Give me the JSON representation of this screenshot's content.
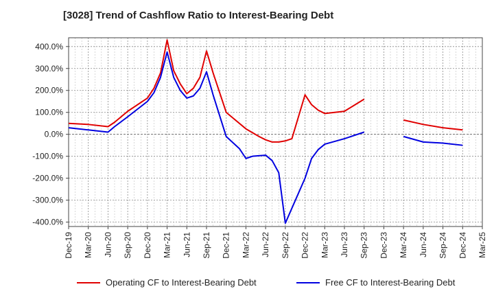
{
  "chart_data": {
    "type": "line",
    "title": "[3028]  Trend of Cashflow Ratio to Interest-Bearing Debt",
    "xlabel": "",
    "ylabel": "",
    "x_ticks": [
      "Dec-19",
      "Mar-20",
      "Jun-20",
      "Sep-20",
      "Dec-20",
      "Mar-21",
      "Jun-21",
      "Sep-21",
      "Dec-21",
      "Mar-22",
      "Jun-22",
      "Sep-22",
      "Dec-22",
      "Mar-23",
      "Jun-23",
      "Sep-23",
      "Dec-23",
      "Mar-24",
      "Jun-24",
      "Sep-24",
      "Dec-24",
      "Mar-25"
    ],
    "y_ticks": [
      {
        "value": 400,
        "label": "400.0%"
      },
      {
        "value": 300,
        "label": "300.0%"
      },
      {
        "value": 200,
        "label": "200.0%"
      },
      {
        "value": 100,
        "label": "100.0%"
      },
      {
        "value": 0,
        "label": "0.0%"
      },
      {
        "value": -100,
        "label": "-100.0%"
      },
      {
        "value": -200,
        "label": "-200.0%"
      },
      {
        "value": -300,
        "label": "-300.0%"
      },
      {
        "value": -400,
        "label": "-400.0%"
      }
    ],
    "ylim": [
      -420,
      440
    ],
    "grid": true,
    "legend_position": "bottom",
    "series": [
      {
        "name": "Operating CF to Interest-Bearing Debt",
        "color": "#e00000",
        "points": [
          [
            "2019-12",
            50
          ],
          [
            "2020-03",
            45
          ],
          [
            "2020-06",
            35
          ],
          [
            "2020-07",
            55
          ],
          [
            "2020-09",
            105
          ],
          [
            "2020-12",
            165
          ],
          [
            "2021-01",
            210
          ],
          [
            "2021-02",
            280
          ],
          [
            "2021-03",
            430
          ],
          [
            "2021-04",
            290
          ],
          [
            "2021-05",
            230
          ],
          [
            "2021-06",
            185
          ],
          [
            "2021-07",
            210
          ],
          [
            "2021-08",
            260
          ],
          [
            "2021-09",
            380
          ],
          [
            "2021-10",
            280
          ],
          [
            "2021-12",
            100
          ],
          [
            "2022-03",
            25
          ],
          [
            "2022-05",
            -10
          ],
          [
            "2022-06",
            -25
          ],
          [
            "2022-07",
            -35
          ],
          [
            "2022-08",
            -35
          ],
          [
            "2022-09",
            -30
          ],
          [
            "2022-10",
            -20
          ],
          [
            "2022-12",
            180
          ],
          [
            "2023-01",
            135
          ],
          [
            "2023-02",
            110
          ],
          [
            "2023-03",
            95
          ],
          [
            "2023-06",
            105
          ],
          [
            "2023-09",
            160
          ],
          null,
          [
            "2024-03",
            65
          ],
          [
            "2024-06",
            45
          ],
          [
            "2024-09",
            30
          ],
          [
            "2024-12",
            20
          ]
        ]
      },
      {
        "name": "Free CF to Interest-Bearing Debt",
        "color": "#0000e0",
        "points": [
          [
            "2019-12",
            30
          ],
          [
            "2020-03",
            20
          ],
          [
            "2020-06",
            10
          ],
          [
            "2020-07",
            35
          ],
          [
            "2020-09",
            80
          ],
          [
            "2020-12",
            150
          ],
          [
            "2021-01",
            190
          ],
          [
            "2021-02",
            260
          ],
          [
            "2021-03",
            375
          ],
          [
            "2021-04",
            260
          ],
          [
            "2021-05",
            200
          ],
          [
            "2021-06",
            165
          ],
          [
            "2021-07",
            175
          ],
          [
            "2021-08",
            210
          ],
          [
            "2021-09",
            285
          ],
          [
            "2021-10",
            180
          ],
          [
            "2021-12",
            -10
          ],
          [
            "2022-02",
            -65
          ],
          [
            "2022-03",
            -110
          ],
          [
            "2022-04",
            -100
          ],
          [
            "2022-06",
            -95
          ],
          [
            "2022-07",
            -120
          ],
          [
            "2022-08",
            -175
          ],
          [
            "2022-09",
            -405
          ],
          [
            "2022-12",
            -200
          ],
          [
            "2023-01",
            -110
          ],
          [
            "2023-02",
            -70
          ],
          [
            "2023-03",
            -45
          ],
          [
            "2023-06",
            -20
          ],
          [
            "2023-09",
            10
          ],
          null,
          [
            "2024-03",
            -10
          ],
          [
            "2024-06",
            -35
          ],
          [
            "2024-09",
            -40
          ],
          [
            "2024-12",
            -50
          ]
        ]
      }
    ]
  }
}
